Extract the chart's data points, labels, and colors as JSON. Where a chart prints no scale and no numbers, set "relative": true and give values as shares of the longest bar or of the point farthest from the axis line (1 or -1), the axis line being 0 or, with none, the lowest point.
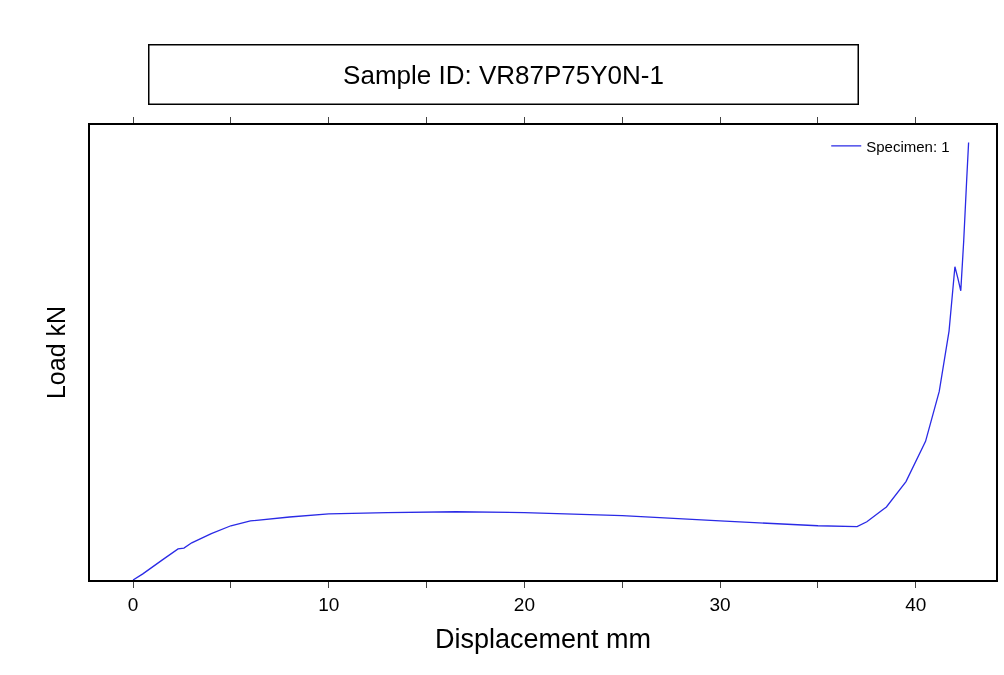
{
  "chart_data": {
    "type": "line",
    "title": "Sample ID: VR87P75Y0N-1",
    "xlabel": "Displacement mm",
    "ylabel": "Load kN",
    "relative": true,
    "legend": "top right",
    "marker": "none",
    "line_style": "solid",
    "xlim": [
      -2.2,
      44.1
    ],
    "xticks": [
      0,
      {
        "value": 5,
        "label": null
      },
      10,
      {
        "value": 15,
        "label": null
      },
      20,
      {
        "value": 25,
        "label": null
      },
      30,
      {
        "value": 35,
        "label": null
      },
      40
    ],
    "series": [
      {
        "name": "Specimen: 1",
        "color": "#2a2ae6",
        "x": [
          0,
          0.5,
          1.5,
          2.3,
          2.6,
          3,
          4,
          5,
          6,
          8,
          10,
          13,
          16.5,
          20,
          25,
          30,
          35,
          37,
          37.5,
          38.5,
          39.5,
          40.5,
          41.2,
          41.7,
          42.0,
          42.15,
          42.3,
          42.45,
          42.6,
          42.7
        ],
        "values": [
          0,
          0.014,
          0.046,
          0.071,
          0.073,
          0.085,
          0.106,
          0.124,
          0.135,
          0.144,
          0.151,
          0.154,
          0.156,
          0.154,
          0.147,
          0.135,
          0.124,
          0.122,
          0.133,
          0.167,
          0.225,
          0.317,
          0.431,
          0.569,
          0.716,
          0.69,
          0.661,
          0.775,
          0.913,
          1.0
        ]
      }
    ]
  }
}
